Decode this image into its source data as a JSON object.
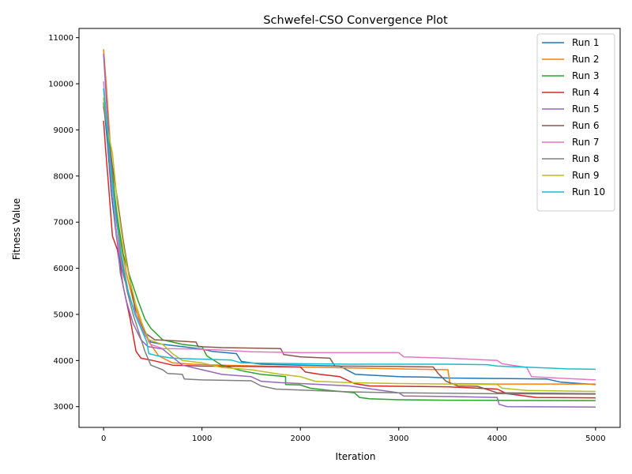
{
  "chart_data": {
    "type": "line",
    "title": "Schwefel-CSO Convergence Plot",
    "xlabel": "Iteration",
    "ylabel": "Fitness Value",
    "xlim": [
      -250,
      5250
    ],
    "ylim": [
      2550,
      11200
    ],
    "xticks": [
      0,
      1000,
      2000,
      3000,
      4000,
      5000
    ],
    "yticks": [
      3000,
      4000,
      5000,
      6000,
      7000,
      8000,
      9000,
      10000,
      11000
    ],
    "grid": false,
    "legend_position": "top-right",
    "series": [
      {
        "name": "Run 1",
        "color": "#1f77b4",
        "points": [
          [
            0,
            9600
          ],
          [
            40,
            8700
          ],
          [
            80,
            7600
          ],
          [
            130,
            6700
          ],
          [
            180,
            6000
          ],
          [
            250,
            5500
          ],
          [
            320,
            5000
          ],
          [
            400,
            4600
          ],
          [
            480,
            4400
          ],
          [
            600,
            4350
          ],
          [
            800,
            4300
          ],
          [
            1000,
            4250
          ],
          [
            1100,
            4200
          ],
          [
            1350,
            4150
          ],
          [
            1400,
            3980
          ],
          [
            1600,
            3920
          ],
          [
            2000,
            3900
          ],
          [
            2400,
            3880
          ],
          [
            2560,
            3700
          ],
          [
            3000,
            3650
          ],
          [
            3300,
            3640
          ],
          [
            3500,
            3620
          ],
          [
            4000,
            3610
          ],
          [
            4500,
            3600
          ],
          [
            4650,
            3530
          ],
          [
            5000,
            3480
          ]
        ]
      },
      {
        "name": "Run 2",
        "color": "#ff7f0e",
        "points": [
          [
            0,
            10750
          ],
          [
            30,
            9900
          ],
          [
            70,
            8600
          ],
          [
            120,
            7400
          ],
          [
            170,
            6600
          ],
          [
            230,
            5900
          ],
          [
            300,
            5300
          ],
          [
            380,
            4800
          ],
          [
            460,
            4400
          ],
          [
            560,
            4100
          ],
          [
            700,
            3950
          ],
          [
            900,
            3920
          ],
          [
            1200,
            3900
          ],
          [
            1600,
            3880
          ],
          [
            2000,
            3860
          ],
          [
            2500,
            3840
          ],
          [
            3000,
            3820
          ],
          [
            3500,
            3800
          ],
          [
            3520,
            3500
          ],
          [
            4000,
            3490
          ],
          [
            5000,
            3490
          ]
        ]
      },
      {
        "name": "Run 3",
        "color": "#2ca02c",
        "points": [
          [
            0,
            9550
          ],
          [
            40,
            9000
          ],
          [
            90,
            8000
          ],
          [
            140,
            7100
          ],
          [
            200,
            6300
          ],
          [
            270,
            5800
          ],
          [
            350,
            5300
          ],
          [
            420,
            4900
          ],
          [
            480,
            4700
          ],
          [
            600,
            4450
          ],
          [
            800,
            4350
          ],
          [
            1000,
            4300
          ],
          [
            1050,
            4100
          ],
          [
            1200,
            3900
          ],
          [
            1400,
            3780
          ],
          [
            1600,
            3700
          ],
          [
            1850,
            3650
          ],
          [
            1850,
            3480
          ],
          [
            2000,
            3470
          ],
          [
            2100,
            3400
          ],
          [
            2300,
            3350
          ],
          [
            2550,
            3300
          ],
          [
            2600,
            3200
          ],
          [
            2700,
            3170
          ],
          [
            3000,
            3150
          ],
          [
            3500,
            3140
          ],
          [
            4000,
            3135
          ],
          [
            5000,
            3130
          ]
        ]
      },
      {
        "name": "Run 4",
        "color": "#d62728",
        "points": [
          [
            0,
            9200
          ],
          [
            20,
            8600
          ],
          [
            50,
            7800
          ],
          [
            90,
            6700
          ],
          [
            140,
            6400
          ],
          [
            200,
            5600
          ],
          [
            270,
            4900
          ],
          [
            330,
            4200
          ],
          [
            380,
            4050
          ],
          [
            500,
            4000
          ],
          [
            700,
            3900
          ],
          [
            1000,
            3880
          ],
          [
            1500,
            3870
          ],
          [
            2000,
            3860
          ],
          [
            2050,
            3750
          ],
          [
            2200,
            3700
          ],
          [
            2400,
            3650
          ],
          [
            2550,
            3500
          ],
          [
            2700,
            3450
          ],
          [
            3000,
            3440
          ],
          [
            3500,
            3430
          ],
          [
            4000,
            3380
          ],
          [
            4100,
            3280
          ],
          [
            4400,
            3200
          ],
          [
            5000,
            3190
          ]
        ]
      },
      {
        "name": "Run 5",
        "color": "#9467bd",
        "points": [
          [
            0,
            10650
          ],
          [
            30,
            9600
          ],
          [
            70,
            8400
          ],
          [
            120,
            7000
          ],
          [
            170,
            5900
          ],
          [
            230,
            5300
          ],
          [
            300,
            4800
          ],
          [
            380,
            4450
          ],
          [
            450,
            4300
          ],
          [
            600,
            4250
          ],
          [
            800,
            3900
          ],
          [
            1000,
            3800
          ],
          [
            1100,
            3750
          ],
          [
            1200,
            3700
          ],
          [
            1500,
            3650
          ],
          [
            1600,
            3550
          ],
          [
            1800,
            3520
          ],
          [
            2000,
            3500
          ],
          [
            2500,
            3450
          ],
          [
            3000,
            3300
          ],
          [
            3050,
            3230
          ],
          [
            3500,
            3220
          ],
          [
            4000,
            3200
          ],
          [
            4020,
            3050
          ],
          [
            4100,
            3000
          ],
          [
            5000,
            2990
          ]
        ]
      },
      {
        "name": "Run 6",
        "color": "#8c564b",
        "points": [
          [
            0,
            9500
          ],
          [
            40,
            9000
          ],
          [
            90,
            8200
          ],
          [
            140,
            7500
          ],
          [
            200,
            6600
          ],
          [
            270,
            5700
          ],
          [
            330,
            5000
          ],
          [
            420,
            4600
          ],
          [
            520,
            4450
          ],
          [
            700,
            4430
          ],
          [
            940,
            4400
          ],
          [
            960,
            4300
          ],
          [
            1200,
            4280
          ],
          [
            1500,
            4270
          ],
          [
            1800,
            4260
          ],
          [
            1830,
            4130
          ],
          [
            2000,
            4080
          ],
          [
            2300,
            4050
          ],
          [
            2350,
            3880
          ],
          [
            3000,
            3870
          ],
          [
            3350,
            3860
          ],
          [
            3400,
            3720
          ],
          [
            3480,
            3550
          ],
          [
            3600,
            3450
          ],
          [
            3800,
            3440
          ],
          [
            4000,
            3300
          ],
          [
            4500,
            3290
          ],
          [
            5000,
            3280
          ]
        ]
      },
      {
        "name": "Run 7",
        "color": "#e377c2",
        "points": [
          [
            0,
            10050
          ],
          [
            30,
            9200
          ],
          [
            70,
            8100
          ],
          [
            130,
            6800
          ],
          [
            190,
            6000
          ],
          [
            260,
            5400
          ],
          [
            330,
            5000
          ],
          [
            410,
            4600
          ],
          [
            480,
            4350
          ],
          [
            600,
            4260
          ],
          [
            900,
            4250
          ],
          [
            1150,
            4230
          ],
          [
            1500,
            4190
          ],
          [
            2000,
            4170
          ],
          [
            2500,
            4170
          ],
          [
            3000,
            4170
          ],
          [
            3050,
            4080
          ],
          [
            3500,
            4050
          ],
          [
            4000,
            4000
          ],
          [
            4050,
            3930
          ],
          [
            4300,
            3850
          ],
          [
            4350,
            3650
          ],
          [
            4600,
            3620
          ],
          [
            5000,
            3580
          ]
        ]
      },
      {
        "name": "Run 8",
        "color": "#7f7f7f",
        "points": [
          [
            0,
            9700
          ],
          [
            40,
            8900
          ],
          [
            80,
            8000
          ],
          [
            130,
            7100
          ],
          [
            180,
            6200
          ],
          [
            240,
            5500
          ],
          [
            300,
            5000
          ],
          [
            360,
            4600
          ],
          [
            420,
            4200
          ],
          [
            480,
            3900
          ],
          [
            600,
            3800
          ],
          [
            650,
            3720
          ],
          [
            800,
            3700
          ],
          [
            820,
            3600
          ],
          [
            1000,
            3580
          ],
          [
            1500,
            3560
          ],
          [
            1600,
            3450
          ],
          [
            1750,
            3380
          ],
          [
            2000,
            3360
          ],
          [
            2500,
            3320
          ],
          [
            3000,
            3300
          ],
          [
            3500,
            3290
          ],
          [
            4000,
            3280
          ],
          [
            5000,
            3270
          ]
        ]
      },
      {
        "name": "Run 9",
        "color": "#bcbd22",
        "points": [
          [
            0,
            9700
          ],
          [
            40,
            9000
          ],
          [
            90,
            8500
          ],
          [
            140,
            7400
          ],
          [
            200,
            6500
          ],
          [
            260,
            5800
          ],
          [
            330,
            5200
          ],
          [
            400,
            4750
          ],
          [
            460,
            4450
          ],
          [
            600,
            4350
          ],
          [
            700,
            4150
          ],
          [
            800,
            4000
          ],
          [
            1000,
            3950
          ],
          [
            1200,
            3850
          ],
          [
            1500,
            3800
          ],
          [
            1800,
            3700
          ],
          [
            2000,
            3650
          ],
          [
            2150,
            3550
          ],
          [
            2500,
            3520
          ],
          [
            3000,
            3500
          ],
          [
            3500,
            3490
          ],
          [
            4000,
            3480
          ],
          [
            4050,
            3400
          ],
          [
            4300,
            3350
          ],
          [
            5000,
            3330
          ]
        ]
      },
      {
        "name": "Run 10",
        "color": "#17becf",
        "points": [
          [
            0,
            9900
          ],
          [
            30,
            9200
          ],
          [
            70,
            8300
          ],
          [
            120,
            7200
          ],
          [
            180,
            6300
          ],
          [
            250,
            5500
          ],
          [
            320,
            5000
          ],
          [
            380,
            4700
          ],
          [
            440,
            4400
          ],
          [
            460,
            4150
          ],
          [
            550,
            4100
          ],
          [
            700,
            4050
          ],
          [
            1000,
            4030
          ],
          [
            1300,
            4010
          ],
          [
            1400,
            3950
          ],
          [
            1600,
            3940
          ],
          [
            2000,
            3930
          ],
          [
            2500,
            3920
          ],
          [
            3000,
            3920
          ],
          [
            3500,
            3920
          ],
          [
            3900,
            3910
          ],
          [
            4000,
            3880
          ],
          [
            4500,
            3840
          ],
          [
            4700,
            3820
          ],
          [
            5000,
            3810
          ]
        ]
      }
    ]
  }
}
